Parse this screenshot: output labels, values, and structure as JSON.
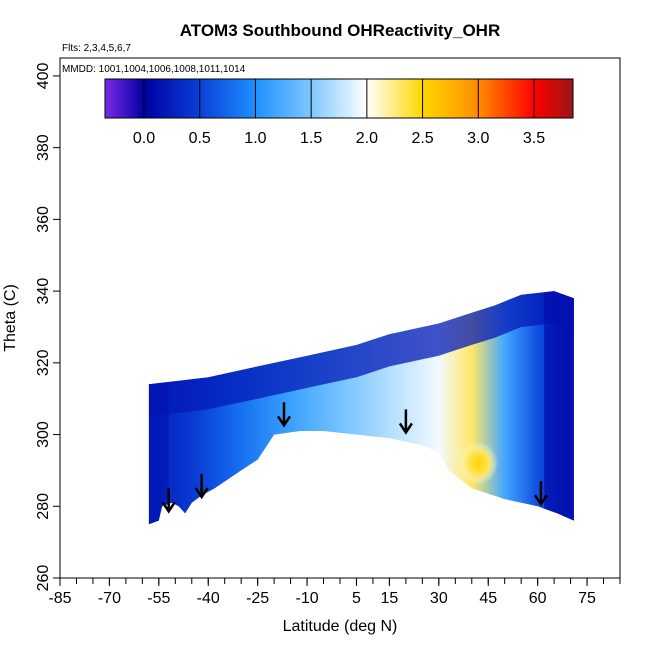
{
  "chart_data": {
    "type": "heatmap",
    "title": "ATOM3 Southbound OHReactivity_OHR",
    "flights_label": "Flts: 2,3,4,5,6,7",
    "dates_label": "MMDD: 1001,1004,1006,1008,1011,1014",
    "xlabel": "Latitude (deg N)",
    "ylabel": "Theta (C)",
    "xlim": [
      -85,
      85
    ],
    "ylim": [
      260,
      405
    ],
    "x_ticks": [
      -85,
      -70,
      -55,
      -40,
      -25,
      -10,
      5,
      15,
      30,
      45,
      60,
      75
    ],
    "x_tick_labels": [
      "-85",
      "-70",
      "-55",
      "-40",
      "-25",
      "-10",
      "5",
      "15",
      "30",
      "45",
      "60",
      "75"
    ],
    "y_ticks": [
      260,
      280,
      300,
      320,
      340,
      360,
      380,
      400
    ],
    "y_tick_labels": [
      "260",
      "280",
      "300",
      "320",
      "340",
      "360",
      "380",
      "400"
    ],
    "colorbar": {
      "min": -0.35,
      "max": 3.85,
      "ticks": [
        0.0,
        0.5,
        1.0,
        1.5,
        2.0,
        2.5,
        3.0,
        3.5
      ],
      "tick_labels": [
        "0.0",
        "0.5",
        "1.0",
        "1.5",
        "2.0",
        "2.5",
        "3.0",
        "3.5"
      ],
      "colors": [
        "#7b2be8",
        "#0000a0",
        "#0a3fd8",
        "#1e90ff",
        "#7ec8ff",
        "#ffffff",
        "#ffd700",
        "#ff8c00",
        "#ff0000",
        "#9b1515"
      ],
      "color_positions": [
        -0.35,
        0.0,
        0.5,
        1.0,
        1.5,
        2.0,
        2.5,
        3.0,
        3.5,
        3.85
      ]
    },
    "curtain": {
      "top_boundary": [
        [
          -58,
          314
        ],
        [
          -40,
          316
        ],
        [
          -25,
          319
        ],
        [
          -10,
          322
        ],
        [
          5,
          325
        ],
        [
          15,
          328
        ],
        [
          30,
          331
        ],
        [
          40,
          334
        ],
        [
          47,
          336
        ],
        [
          55,
          339
        ],
        [
          65,
          340
        ],
        [
          71,
          338
        ]
      ],
      "bottom_boundary": [
        [
          -58,
          275
        ],
        [
          -55,
          276
        ],
        [
          -54,
          280
        ],
        [
          -51,
          281
        ],
        [
          -49,
          280
        ],
        [
          -47,
          278
        ],
        [
          -45,
          281
        ],
        [
          -42,
          283
        ],
        [
          -38,
          285
        ],
        [
          -30,
          290
        ],
        [
          -25,
          293
        ],
        [
          -20,
          300
        ],
        [
          -12,
          301
        ],
        [
          -5,
          301
        ],
        [
          5,
          300
        ],
        [
          15,
          299
        ],
        [
          25,
          297
        ],
        [
          30,
          295
        ],
        [
          33,
          290
        ],
        [
          40,
          285
        ],
        [
          50,
          282
        ],
        [
          60,
          280
        ],
        [
          66,
          278
        ],
        [
          71,
          276
        ]
      ],
      "bands": [
        {
          "lat": -57,
          "theta_min": 275,
          "theta_max": 314,
          "value": 0.25
        },
        {
          "lat": -45,
          "theta_min": 280,
          "theta_max": 315,
          "value": 0.45
        },
        {
          "lat": -30,
          "theta_min": 288,
          "theta_max": 318,
          "value": 0.8
        },
        {
          "lat": -15,
          "theta_min": 300,
          "theta_max": 321,
          "value": 1.15
        },
        {
          "lat": 0,
          "theta_min": 300,
          "theta_max": 324,
          "value": 1.45
        },
        {
          "lat": 15,
          "theta_min": 299,
          "theta_max": 328,
          "value": 1.7
        },
        {
          "lat": 30,
          "theta_min": 294,
          "theta_max": 331,
          "value": 1.95
        },
        {
          "lat": 40,
          "theta_min": 285,
          "theta_max": 334,
          "value": 2.3
        },
        {
          "lat": 50,
          "theta_min": 282,
          "theta_max": 337,
          "value": 1.2
        },
        {
          "lat": 60,
          "theta_min": 280,
          "theta_max": 339,
          "value": 0.6
        },
        {
          "lat": 70,
          "theta_min": 276,
          "theta_max": 339,
          "value": 0.2
        }
      ],
      "hotspot": {
        "lat": 42,
        "theta": 292,
        "value": 2.55
      }
    },
    "arrows": [
      {
        "lat": -52,
        "theta": 285
      },
      {
        "lat": -42,
        "theta": 289
      },
      {
        "lat": -17,
        "theta": 309
      },
      {
        "lat": 20,
        "theta": 307
      },
      {
        "lat": 61,
        "theta": 287
      }
    ]
  }
}
